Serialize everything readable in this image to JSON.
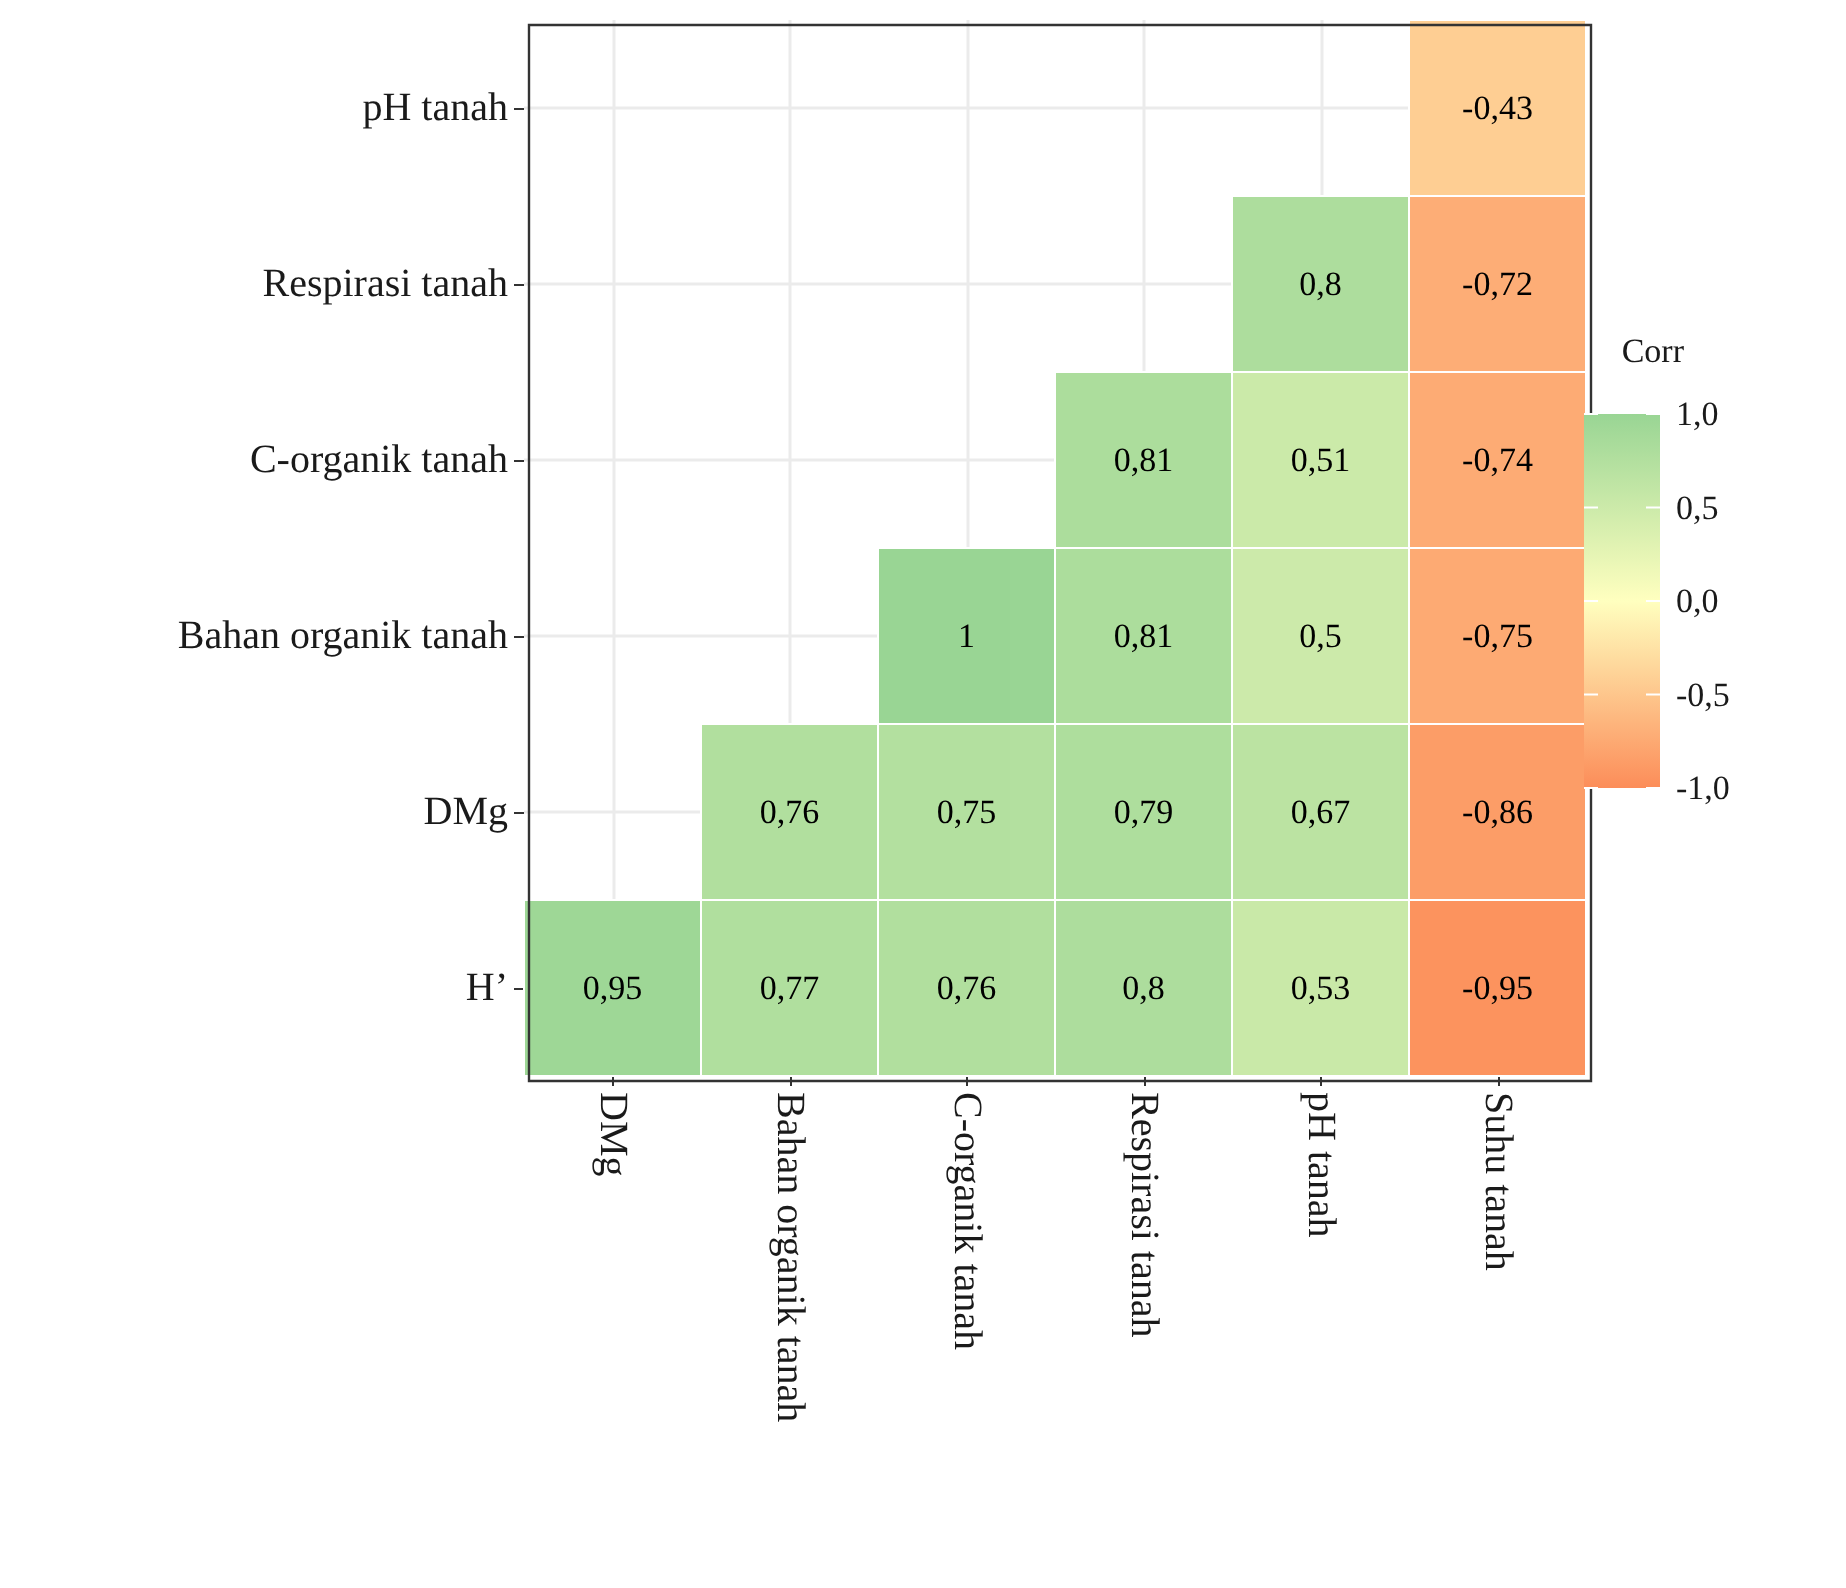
{
  "chart_data": {
    "type": "heatmap",
    "clabel": "Corr",
    "categories": [
      "DMg",
      "Bahan organik tanah",
      "C-organik tanah",
      "Respirasi tanah",
      "pH tanah",
      "Suhu tanah"
    ],
    "y_categories": [
      "pH tanah",
      "Respirasi tanah",
      "C-organik tanah",
      "Bahan organik tanah",
      "DMg",
      "H’"
    ],
    "cells": [
      [
        null,
        null,
        null,
        null,
        null,
        -0.43
      ],
      [
        null,
        null,
        null,
        null,
        0.8,
        -0.72
      ],
      [
        null,
        null,
        null,
        0.81,
        0.51,
        -0.74
      ],
      [
        null,
        null,
        1,
        0.81,
        0.5,
        -0.75
      ],
      [
        null,
        0.76,
        0.75,
        0.79,
        0.67,
        -0.86
      ],
      [
        0.95,
        0.77,
        0.76,
        0.8,
        0.53,
        -0.95
      ]
    ],
    "cell_labels": [
      [
        null,
        null,
        null,
        null,
        null,
        "-0,43"
      ],
      [
        null,
        null,
        null,
        null,
        "0,8",
        "-0,72"
      ],
      [
        null,
        null,
        null,
        "0,81",
        "0,51",
        "-0,74"
      ],
      [
        null,
        null,
        "1",
        "0,81",
        "0,5",
        "-0,75"
      ],
      [
        null,
        "0,76",
        "0,75",
        "0,79",
        "0,67",
        "-0,86"
      ],
      [
        "0,95",
        "0,77",
        "0,76",
        "0,8",
        "0,53",
        "-0,95"
      ]
    ],
    "clim": [
      -1,
      1
    ],
    "cticks": [
      {
        "value": 1,
        "label": "1,0"
      },
      {
        "value": 0.5,
        "label": "0,5"
      },
      {
        "value": 0,
        "label": "0,0"
      },
      {
        "value": -0.5,
        "label": "-0,5"
      },
      {
        "value": -1,
        "label": "-1,0"
      }
    ],
    "colors": [
      "#fc8d59",
      "#ffffbf",
      "#99d594"
    ],
    "grid": true
  }
}
